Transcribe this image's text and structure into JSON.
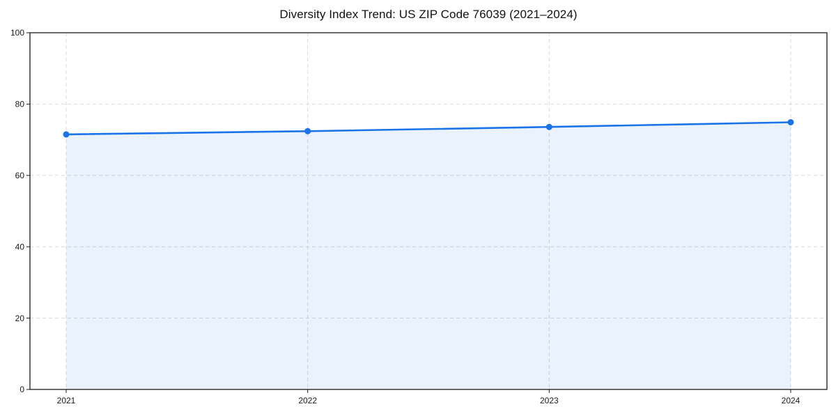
{
  "chart_data": {
    "type": "area",
    "title": "Diversity Index Trend: US ZIP Code 76039 (2021–2024)",
    "x": [
      "2021",
      "2022",
      "2023",
      "2024"
    ],
    "series": [
      {
        "name": "Diversity Index",
        "values": [
          71.5,
          72.4,
          73.6,
          74.9
        ]
      }
    ],
    "xlabel": "",
    "ylabel": "",
    "ylim": [
      0,
      100
    ],
    "yticks": [
      0,
      20,
      40,
      60,
      80,
      100
    ],
    "xticks": [
      "2021",
      "2022",
      "2023",
      "2024"
    ],
    "grid": "dashed-both-axes",
    "legend": "none",
    "markers": "filled-circle",
    "colors": {
      "line": "#1a73e8",
      "marker": "#1a73e8",
      "area_fill": "rgba(26,115,232,0.09)",
      "grid": "#d9d9d9",
      "spine": "#1a1a1a",
      "title_text": "#111111",
      "tick_text": "#1a1a1a",
      "background": "#ffffff"
    }
  }
}
